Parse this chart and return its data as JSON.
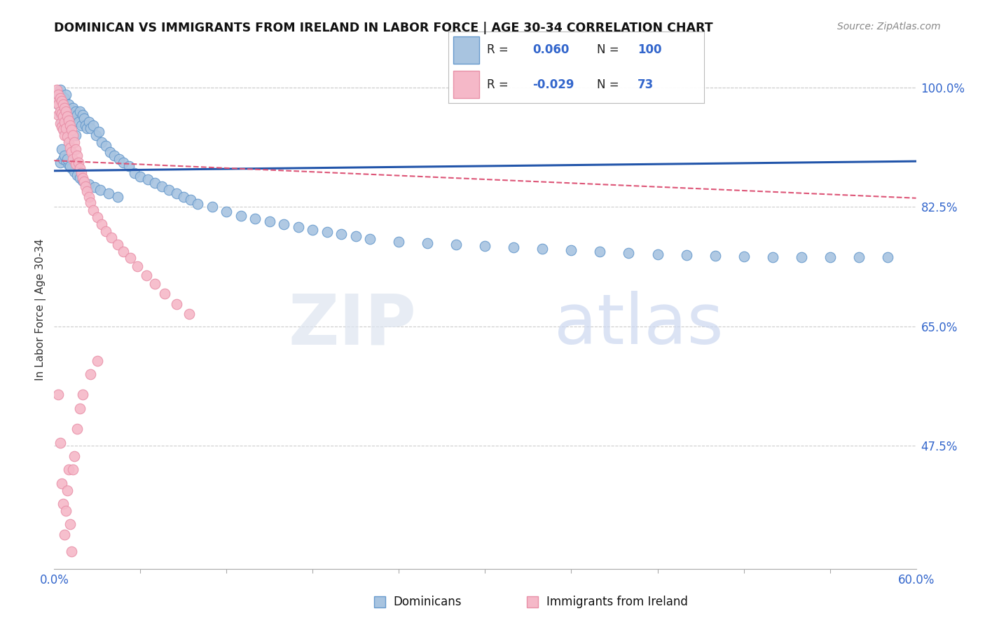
{
  "title": "DOMINICAN VS IMMIGRANTS FROM IRELAND IN LABOR FORCE | AGE 30-34 CORRELATION CHART",
  "source": "Source: ZipAtlas.com",
  "ylabel": "In Labor Force | Age 30-34",
  "ytick_labels": [
    "100.0%",
    "82.5%",
    "65.0%",
    "47.5%"
  ],
  "ytick_values": [
    1.0,
    0.825,
    0.65,
    0.475
  ],
  "xmin": 0.0,
  "xmax": 0.6,
  "ymin": 0.295,
  "ymax": 1.055,
  "blue_dot_color": "#a8c4e0",
  "blue_edge_color": "#6699cc",
  "pink_dot_color": "#f5b8c8",
  "pink_edge_color": "#e890a8",
  "blue_line_color": "#2255aa",
  "pink_line_color": "#dd5577",
  "watermark_zip": "ZIP",
  "watermark_atlas": "atlas",
  "legend_r1": "0.060",
  "legend_n1": "100",
  "legend_r2": "-0.029",
  "legend_n2": "73",
  "blue_trend_y0": 0.878,
  "blue_trend_y1": 0.892,
  "pink_trend_y0": 0.893,
  "pink_trend_y1": 0.838,
  "blue_dots_x": [
    0.002,
    0.003,
    0.004,
    0.004,
    0.005,
    0.005,
    0.006,
    0.006,
    0.007,
    0.007,
    0.008,
    0.008,
    0.009,
    0.009,
    0.01,
    0.01,
    0.011,
    0.012,
    0.013,
    0.014,
    0.015,
    0.015,
    0.016,
    0.017,
    0.018,
    0.019,
    0.02,
    0.021,
    0.022,
    0.023,
    0.024,
    0.025,
    0.027,
    0.029,
    0.031,
    0.033,
    0.036,
    0.039,
    0.042,
    0.045,
    0.048,
    0.052,
    0.056,
    0.06,
    0.065,
    0.07,
    0.075,
    0.08,
    0.085,
    0.09,
    0.095,
    0.1,
    0.11,
    0.12,
    0.13,
    0.14,
    0.15,
    0.16,
    0.17,
    0.18,
    0.19,
    0.2,
    0.21,
    0.22,
    0.24,
    0.26,
    0.28,
    0.3,
    0.32,
    0.34,
    0.36,
    0.38,
    0.4,
    0.42,
    0.44,
    0.46,
    0.48,
    0.5,
    0.52,
    0.54,
    0.56,
    0.58,
    0.004,
    0.006,
    0.008,
    0.01,
    0.012,
    0.014,
    0.016,
    0.018,
    0.02,
    0.024,
    0.028,
    0.032,
    0.038,
    0.044,
    0.005,
    0.007,
    0.009,
    0.011
  ],
  "blue_dots_y": [
    0.987,
    0.975,
    0.997,
    0.962,
    0.988,
    0.95,
    0.975,
    0.94,
    0.985,
    0.96,
    0.99,
    0.945,
    0.97,
    0.935,
    0.975,
    0.925,
    0.96,
    0.955,
    0.97,
    0.96,
    0.965,
    0.93,
    0.96,
    0.95,
    0.965,
    0.945,
    0.96,
    0.955,
    0.945,
    0.94,
    0.95,
    0.94,
    0.945,
    0.93,
    0.935,
    0.92,
    0.915,
    0.905,
    0.9,
    0.895,
    0.89,
    0.885,
    0.875,
    0.87,
    0.865,
    0.86,
    0.855,
    0.85,
    0.845,
    0.84,
    0.836,
    0.83,
    0.825,
    0.818,
    0.812,
    0.808,
    0.804,
    0.8,
    0.796,
    0.792,
    0.788,
    0.785,
    0.782,
    0.778,
    0.774,
    0.772,
    0.77,
    0.768,
    0.766,
    0.764,
    0.762,
    0.76,
    0.758,
    0.756,
    0.755,
    0.754,
    0.753,
    0.752,
    0.752,
    0.752,
    0.752,
    0.752,
    0.89,
    0.895,
    0.893,
    0.887,
    0.882,
    0.877,
    0.872,
    0.868,
    0.863,
    0.858,
    0.854,
    0.85,
    0.845,
    0.84,
    0.91,
    0.9,
    0.895,
    0.885
  ],
  "pink_dots_x": [
    0.002,
    0.002,
    0.003,
    0.003,
    0.003,
    0.004,
    0.004,
    0.004,
    0.005,
    0.005,
    0.005,
    0.006,
    0.006,
    0.006,
    0.007,
    0.007,
    0.007,
    0.008,
    0.008,
    0.009,
    0.009,
    0.01,
    0.01,
    0.011,
    0.011,
    0.012,
    0.012,
    0.013,
    0.013,
    0.014,
    0.015,
    0.015,
    0.016,
    0.017,
    0.018,
    0.019,
    0.02,
    0.021,
    0.022,
    0.023,
    0.024,
    0.025,
    0.027,
    0.03,
    0.033,
    0.036,
    0.04,
    0.044,
    0.048,
    0.053,
    0.058,
    0.064,
    0.07,
    0.077,
    0.085,
    0.094,
    0.003,
    0.004,
    0.005,
    0.006,
    0.007,
    0.008,
    0.009,
    0.01,
    0.011,
    0.012,
    0.013,
    0.014,
    0.016,
    0.018,
    0.02,
    0.025,
    0.03
  ],
  "pink_dots_y": [
    0.997,
    0.978,
    0.99,
    0.975,
    0.96,
    0.985,
    0.965,
    0.948,
    0.98,
    0.962,
    0.942,
    0.975,
    0.958,
    0.938,
    0.97,
    0.95,
    0.93,
    0.965,
    0.94,
    0.958,
    0.928,
    0.952,
    0.92,
    0.945,
    0.912,
    0.938,
    0.905,
    0.93,
    0.895,
    0.92,
    0.91,
    0.888,
    0.9,
    0.89,
    0.882,
    0.875,
    0.868,
    0.862,
    0.855,
    0.848,
    0.84,
    0.832,
    0.82,
    0.81,
    0.8,
    0.79,
    0.78,
    0.77,
    0.76,
    0.75,
    0.738,
    0.725,
    0.712,
    0.698,
    0.683,
    0.668,
    0.55,
    0.48,
    0.42,
    0.39,
    0.345,
    0.38,
    0.41,
    0.44,
    0.36,
    0.32,
    0.44,
    0.46,
    0.5,
    0.53,
    0.55,
    0.58,
    0.6
  ]
}
